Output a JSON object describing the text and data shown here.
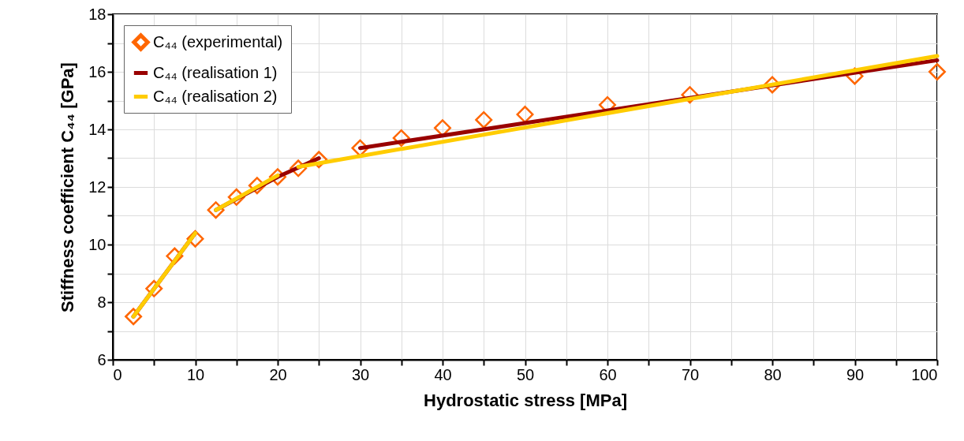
{
  "chart_data": {
    "type": "scatter",
    "xlabel": "Hydrostatic stress [MPa]",
    "ylabel": "Stiffness coefficient C₄₄ [GPa]",
    "x": [
      2.5,
      5,
      7.5,
      10,
      12.5,
      15,
      17.5,
      20,
      22.5,
      25,
      30,
      35,
      40,
      45,
      50,
      60,
      70,
      80,
      90,
      100
    ],
    "series": [
      {
        "name": "C₄₄ (experimental)",
        "marker": "diamond",
        "color": "#ff6600",
        "values": [
          7.5,
          8.47,
          9.6,
          10.2,
          11.2,
          11.65,
          12.05,
          12.35,
          12.65,
          12.95,
          13.35,
          13.7,
          14.05,
          14.33,
          14.52,
          14.85,
          15.2,
          15.55,
          15.85,
          16.0
        ]
      },
      {
        "name": "C₄₄ (realisation 1)",
        "type": "line",
        "color": "#990000",
        "x": [
          2.5,
          10,
          11,
          12.5,
          20,
          25,
          27.5,
          30,
          100
        ],
        "values": [
          7.5,
          10.4,
          null,
          11.2,
          12.35,
          13.0,
          null,
          13.35,
          16.4
        ]
      },
      {
        "name": "C₄₄ (realisation 2)",
        "type": "line",
        "color": "#ffcc00",
        "x": [
          2.5,
          10,
          11,
          12.5,
          20,
          21,
          22.5,
          100
        ],
        "values": [
          7.5,
          10.4,
          null,
          11.2,
          12.4,
          null,
          12.7,
          16.55
        ]
      }
    ],
    "line_style": "solid",
    "xlim": [
      0,
      100
    ],
    "xticks": [
      0,
      {
        "value": 5,
        "label": null
      },
      10,
      {
        "value": 15,
        "label": null
      },
      20,
      {
        "value": 25,
        "label": null
      },
      30,
      {
        "value": 35,
        "label": null
      },
      40,
      {
        "value": 45,
        "label": null
      },
      50,
      {
        "value": 55,
        "label": null
      },
      60,
      {
        "value": 65,
        "label": null
      },
      70,
      {
        "value": 75,
        "label": null
      },
      80,
      {
        "value": 85,
        "label": null
      },
      90,
      {
        "value": 95,
        "label": null
      },
      100
    ],
    "ylim": [
      6,
      18
    ],
    "yticks": [
      6,
      {
        "value": 7,
        "label": null
      },
      8,
      {
        "value": 9,
        "label": null
      },
      10,
      {
        "value": 11,
        "label": null
      },
      12,
      {
        "value": 13,
        "label": null
      },
      14,
      {
        "value": 15,
        "label": null
      },
      16,
      {
        "value": 17,
        "label": null
      },
      18
    ],
    "grid": true,
    "legend": "top left"
  }
}
